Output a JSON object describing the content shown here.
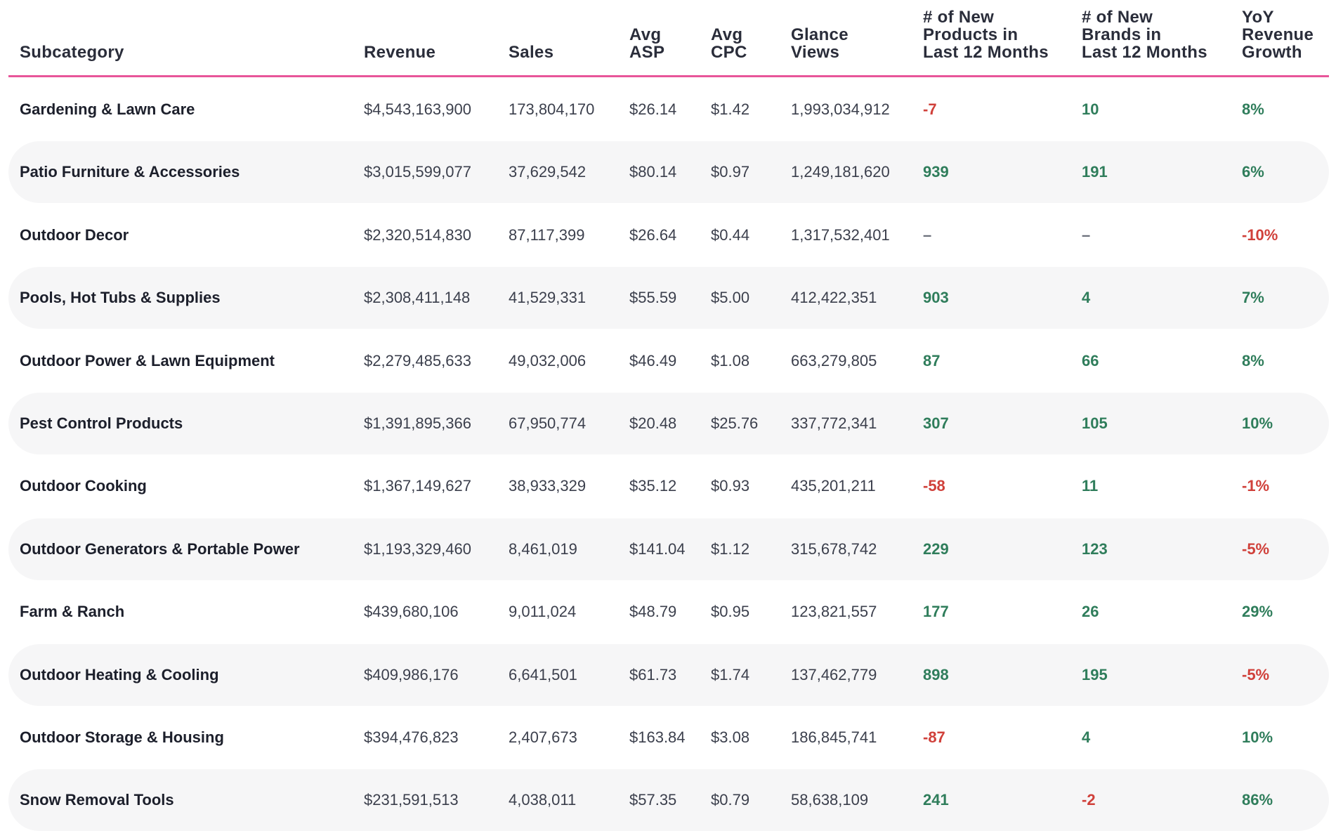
{
  "chart_data": {
    "type": "table",
    "colors": {
      "header_rule": "#e8559a",
      "positive": "#2f7d5b",
      "negative": "#d0403a",
      "row_alt": "#f6f6f7"
    },
    "columns": [
      "Subcategory",
      "Revenue",
      "Sales",
      "Avg\nASP",
      "Avg\nCPC",
      "Glance\nViews",
      "# of New\nProducts in\nLast 12 Months",
      "# of New\nBrands in\nLast 12 Months",
      "YoY\nRevenue\nGrowth"
    ],
    "rows": [
      {
        "subcategory": "Gardening & Lawn Care",
        "revenue": "$4,543,163,900",
        "sales": "173,804,170",
        "avg_asp": "$26.14",
        "avg_cpc": "$1.42",
        "glance_views": "1,993,034,912",
        "new_products": "-7",
        "new_brands": "10",
        "yoy_growth": "8%"
      },
      {
        "subcategory": "Patio Furniture & Accessories",
        "revenue": "$3,015,599,077",
        "sales": "37,629,542",
        "avg_asp": "$80.14",
        "avg_cpc": "$0.97",
        "glance_views": "1,249,181,620",
        "new_products": "939",
        "new_brands": "191",
        "yoy_growth": "6%"
      },
      {
        "subcategory": "Outdoor Decor",
        "revenue": "$2,320,514,830",
        "sales": "87,117,399",
        "avg_asp": "$26.64",
        "avg_cpc": "$0.44",
        "glance_views": "1,317,532,401",
        "new_products": "–",
        "new_brands": "–",
        "yoy_growth": "-10%"
      },
      {
        "subcategory": "Pools, Hot Tubs & Supplies",
        "revenue": "$2,308,411,148",
        "sales": "41,529,331",
        "avg_asp": "$55.59",
        "avg_cpc": "$5.00",
        "glance_views": "412,422,351",
        "new_products": "903",
        "new_brands": "4",
        "yoy_growth": "7%"
      },
      {
        "subcategory": "Outdoor Power & Lawn Equipment",
        "revenue": "$2,279,485,633",
        "sales": "49,032,006",
        "avg_asp": "$46.49",
        "avg_cpc": "$1.08",
        "glance_views": "663,279,805",
        "new_products": "87",
        "new_brands": "66",
        "yoy_growth": "8%"
      },
      {
        "subcategory": "Pest Control Products",
        "revenue": "$1,391,895,366",
        "sales": "67,950,774",
        "avg_asp": "$20.48",
        "avg_cpc": "$25.76",
        "glance_views": "337,772,341",
        "new_products": "307",
        "new_brands": "105",
        "yoy_growth": "10%"
      },
      {
        "subcategory": "Outdoor Cooking",
        "revenue": "$1,367,149,627",
        "sales": "38,933,329",
        "avg_asp": "$35.12",
        "avg_cpc": "$0.93",
        "glance_views": "435,201,211",
        "new_products": "-58",
        "new_brands": "11",
        "yoy_growth": "-1%"
      },
      {
        "subcategory": "Outdoor Generators & Portable Power",
        "revenue": "$1,193,329,460",
        "sales": "8,461,019",
        "avg_asp": "$141.04",
        "avg_cpc": "$1.12",
        "glance_views": "315,678,742",
        "new_products": "229",
        "new_brands": "123",
        "yoy_growth": "-5%"
      },
      {
        "subcategory": "Farm & Ranch",
        "revenue": "$439,680,106",
        "sales": "9,011,024",
        "avg_asp": "$48.79",
        "avg_cpc": "$0.95",
        "glance_views": "123,821,557",
        "new_products": "177",
        "new_brands": "26",
        "yoy_growth": "29%"
      },
      {
        "subcategory": "Outdoor Heating & Cooling",
        "revenue": "$409,986,176",
        "sales": "6,641,501",
        "avg_asp": "$61.73",
        "avg_cpc": "$1.74",
        "glance_views": "137,462,779",
        "new_products": "898",
        "new_brands": "195",
        "yoy_growth": "-5%"
      },
      {
        "subcategory": "Outdoor Storage & Housing",
        "revenue": "$394,476,823",
        "sales": "2,407,673",
        "avg_asp": "$163.84",
        "avg_cpc": "$3.08",
        "glance_views": "186,845,741",
        "new_products": "-87",
        "new_brands": "4",
        "yoy_growth": "10%"
      },
      {
        "subcategory": "Snow Removal Tools",
        "revenue": "$231,591,513",
        "sales": "4,038,011",
        "avg_asp": "$57.35",
        "avg_cpc": "$0.79",
        "glance_views": "58,638,109",
        "new_products": "241",
        "new_brands": "-2",
        "yoy_growth": "86%"
      }
    ]
  }
}
